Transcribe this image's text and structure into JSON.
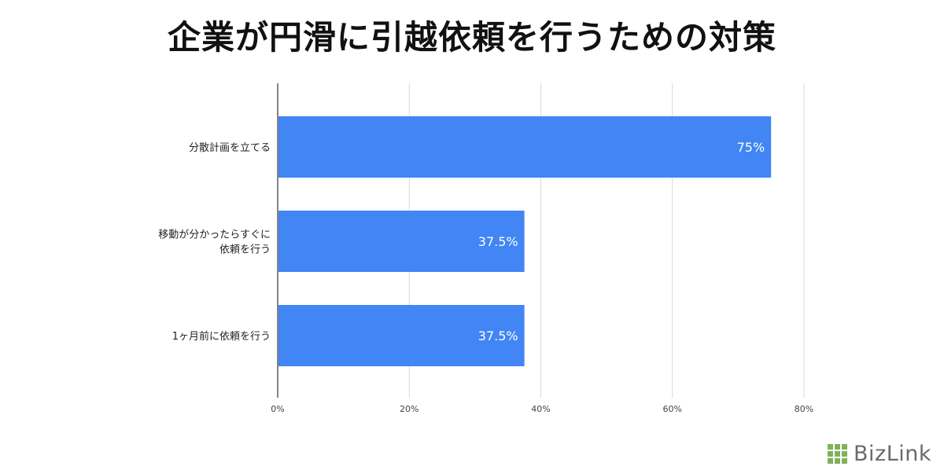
{
  "chart_data": {
    "type": "bar",
    "orientation": "horizontal",
    "title": "企業が円滑に引越依頼を行うための対策",
    "categories": [
      [
        "分散計画を立てる"
      ],
      [
        "移動が分かったらすぐに",
        "依頼を行う"
      ],
      [
        "1ヶ月前に依頼を行う"
      ]
    ],
    "values": [
      75,
      37.5,
      37.5
    ],
    "data_labels": [
      "75%",
      "37.5%",
      "37.5%"
    ],
    "x_ticks": [
      "0%",
      "20%",
      "40%",
      "60%",
      "80%"
    ],
    "xlim": [
      0,
      80
    ],
    "grid": "vertical",
    "bar_color": "#4285f4"
  },
  "logo": {
    "text": "BizLink",
    "color": "#7fb05a"
  }
}
